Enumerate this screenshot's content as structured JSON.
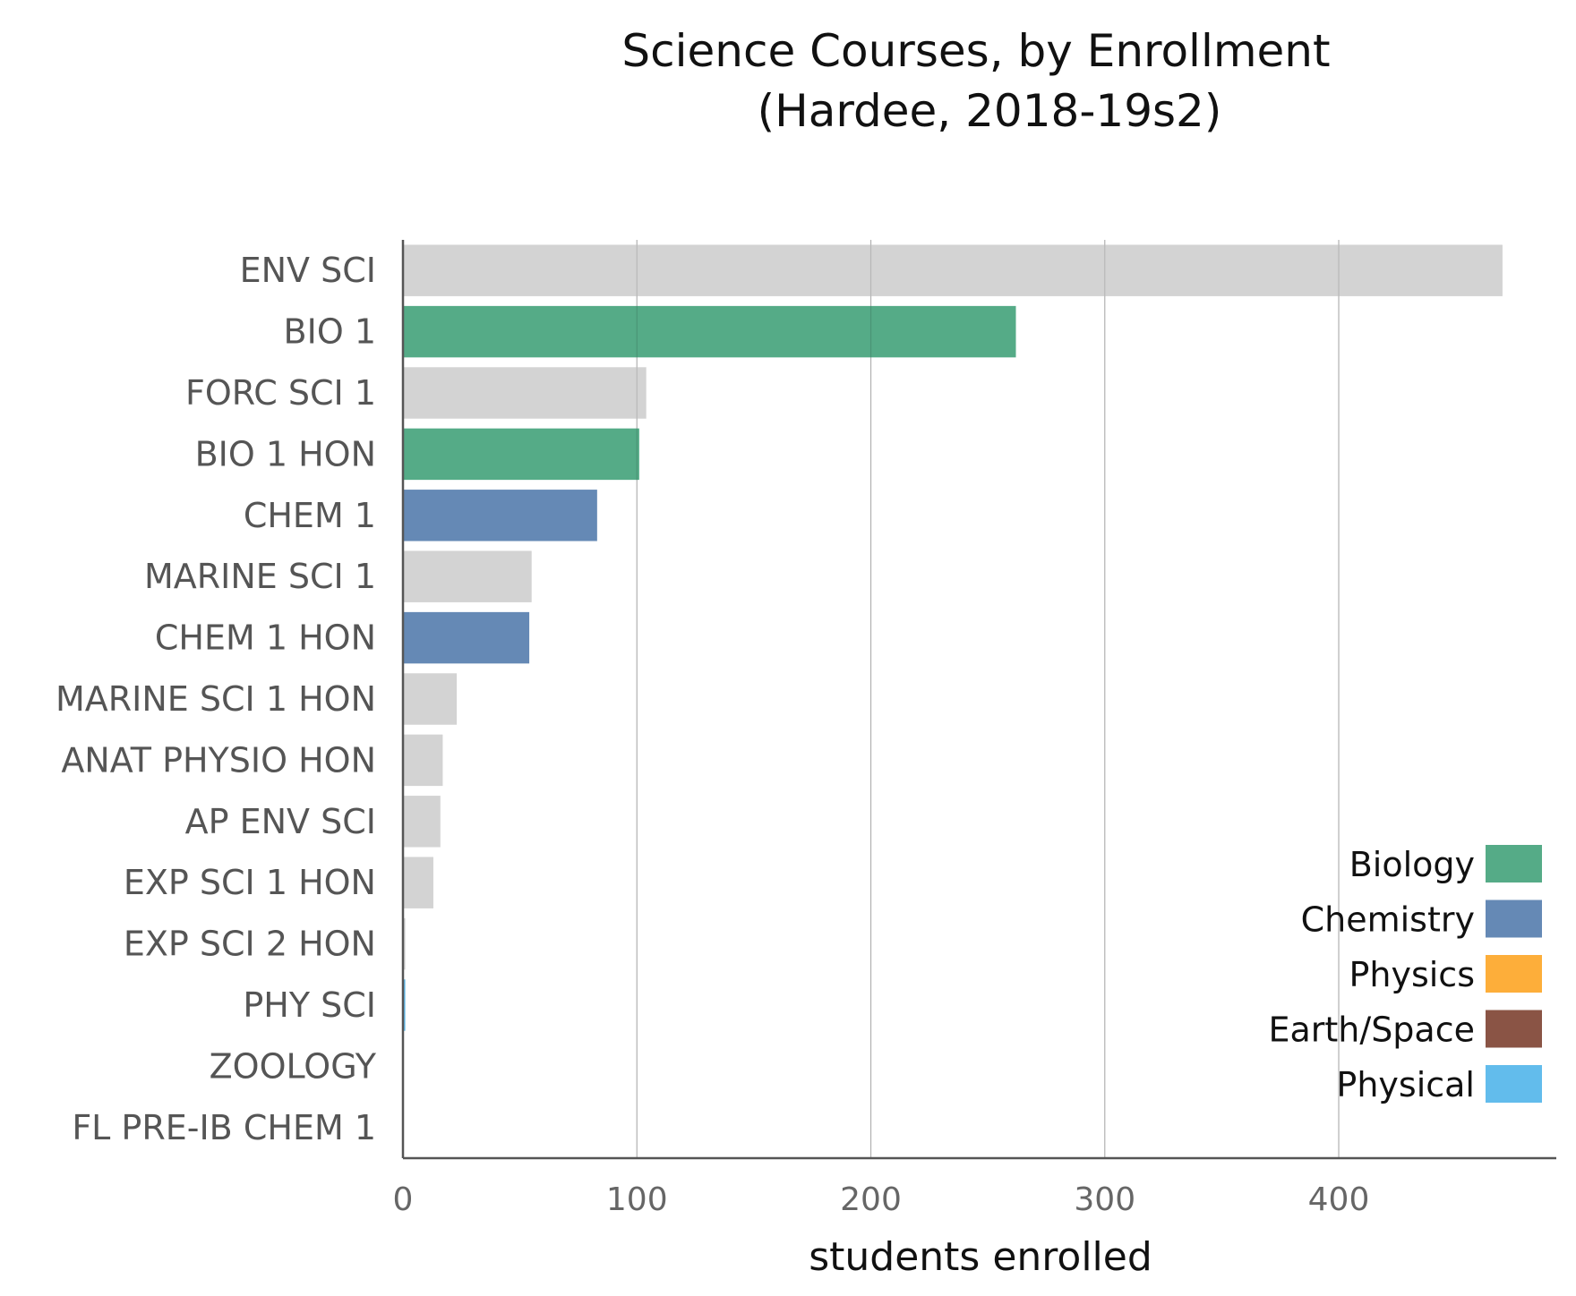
{
  "chart_data": {
    "type": "bar",
    "orientation": "horizontal",
    "title": "Science Courses, by Enrollment",
    "subtitle": "(Hardee, 2018-19s2)",
    "xlabel": "students enrolled",
    "xlim": [
      0,
      493
    ],
    "xticks": [
      0,
      100,
      200,
      300,
      400
    ],
    "grid": true,
    "legend_position": "bottom-right",
    "colors": {
      "Biology": "#55ab87",
      "Chemistry": "#6589b5",
      "Physics": "#fdae3a",
      "Earth/Space": "#8a5445",
      "Physical": "#62bcec",
      "Other": "#d3d3d3"
    },
    "legend": [
      "Biology",
      "Chemistry",
      "Physics",
      "Earth/Space",
      "Physical"
    ],
    "categories": [
      "ENV SCI",
      "BIO 1",
      "FORC SCI 1",
      "BIO 1 HON",
      "CHEM 1",
      "MARINE SCI 1",
      "CHEM 1 HON",
      "MARINE SCI 1 HON",
      "ANAT PHYSIO HON",
      "AP ENV SCI",
      "EXP SCI 1 HON",
      "EXP SCI 2 HON",
      "PHY SCI",
      "ZOOLOGY",
      "FL PRE-IB CHEM 1"
    ],
    "values": [
      470,
      262,
      104,
      101,
      83,
      55,
      54,
      23,
      17,
      16,
      13,
      1,
      1,
      0,
      0
    ],
    "groups": [
      "Other",
      "Biology",
      "Other",
      "Biology",
      "Chemistry",
      "Other",
      "Chemistry",
      "Other",
      "Other",
      "Other",
      "Other",
      "Other",
      "Physical",
      "Other",
      "Chemistry"
    ]
  }
}
